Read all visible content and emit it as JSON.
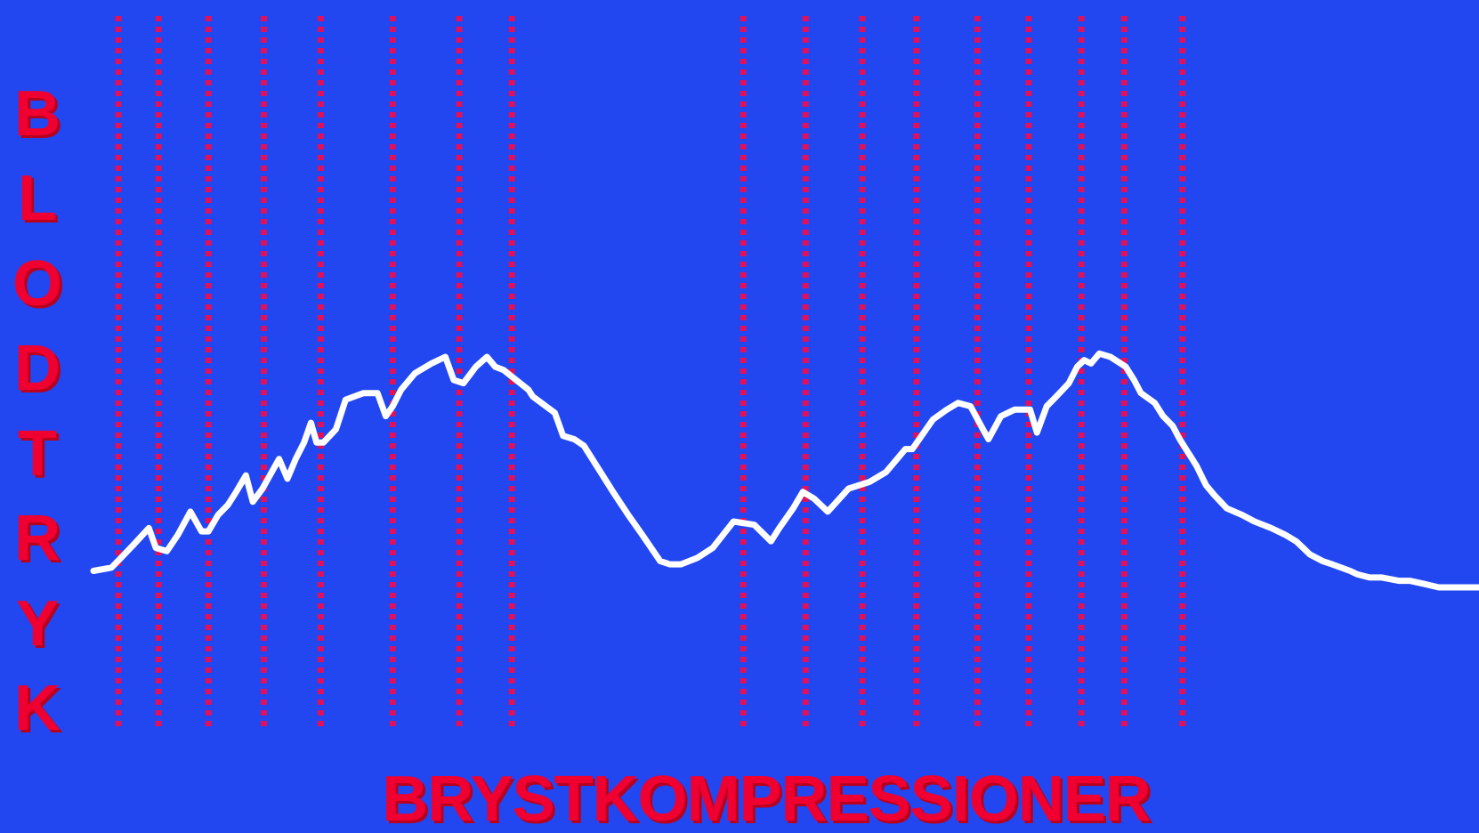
{
  "chart_data": {
    "type": "line",
    "title": "",
    "ylabel": "BLODTRYK",
    "xlabel": "BRYSTKOMPRESSIONER",
    "grid": false,
    "legend": "none",
    "x_range": [
      0,
      100
    ],
    "y_range": [
      0,
      100
    ],
    "series": [
      {
        "color": "#ffffff",
        "x": [
          0,
          1.3,
          2.0,
          2.9,
          4.0,
          4.5,
          5.3,
          6.1,
          7.0,
          7.8,
          8.3,
          9.0,
          9.7,
          10.3,
          11.0,
          11.5,
          12.2,
          13.4,
          14.0,
          14.6,
          15.2,
          15.7,
          16.1,
          16.6,
          17.5,
          18.2,
          19.5,
          20.5,
          21.1,
          21.6,
          22.2,
          23.2,
          24.4,
          25.4,
          26.0,
          26.7,
          27.6,
          28.4,
          29.0,
          29.6,
          31.4,
          31.7,
          33.3,
          33.9,
          34.7,
          35.4,
          36.6,
          37.5,
          38.6,
          39.6,
          40.9,
          41.6,
          42.4,
          43.6,
          44.7,
          46.2,
          47.7,
          48.9,
          49.5,
          50.5,
          51.2,
          52.0,
          53.0,
          54.5,
          56.0,
          57.2,
          58.0,
          58.6,
          59.1,
          60.6,
          61.6,
          62.4,
          63.3,
          64.2,
          64.6,
          65.5,
          66.5,
          67.6,
          68.1,
          68.8,
          69.5,
          70.4,
          71.0,
          71.5,
          72.0,
          72.6,
          73.4,
          74.5,
          75.1,
          75.6,
          76.6,
          77.2,
          77.9,
          78.4,
          79.0,
          79.6,
          80.3,
          80.9,
          81.8,
          82.9,
          83.8,
          85.0,
          86.0,
          86.8,
          87.3,
          87.8,
          88.7,
          89.4,
          90.7,
          91.2,
          92.1,
          93.0,
          94.2,
          95.0,
          96.1,
          97.1,
          98.0,
          98.5,
          100
        ],
        "y": [
          5,
          6,
          9,
          13,
          18,
          12,
          11,
          16,
          23,
          17,
          17,
          22,
          25,
          29,
          34,
          26,
          30,
          39,
          33,
          39,
          44,
          50,
          44,
          44,
          48,
          57,
          59,
          59,
          52,
          55,
          60,
          65,
          68,
          70,
          63,
          62,
          67,
          70,
          67,
          66,
          60,
          58,
          53,
          46,
          45,
          43,
          35,
          29,
          22,
          16,
          8,
          7,
          7,
          9,
          12,
          20,
          19,
          14,
          18,
          24,
          29,
          27,
          23,
          30,
          32,
          35,
          39,
          42,
          42,
          51,
          54,
          56,
          55,
          48,
          45,
          52,
          54,
          54,
          47,
          55,
          58,
          62,
          67,
          69,
          68,
          71,
          70,
          67,
          63,
          59,
          56,
          52,
          49,
          45,
          41,
          37,
          31,
          28,
          24,
          22,
          20,
          18,
          16,
          14,
          12,
          10,
          8,
          7,
          5,
          4,
          3,
          3,
          2,
          2,
          1,
          0,
          0,
          0,
          0
        ]
      }
    ],
    "marker_lines": {
      "color": "#e0105a",
      "x": [
        1.8,
        4.7,
        8.3,
        12.3,
        16.4,
        21.6,
        26.4,
        30.2,
        46.9,
        51.4,
        55.5,
        59.4,
        63.8,
        67.5,
        71.3,
        74.4,
        78.6
      ]
    }
  }
}
